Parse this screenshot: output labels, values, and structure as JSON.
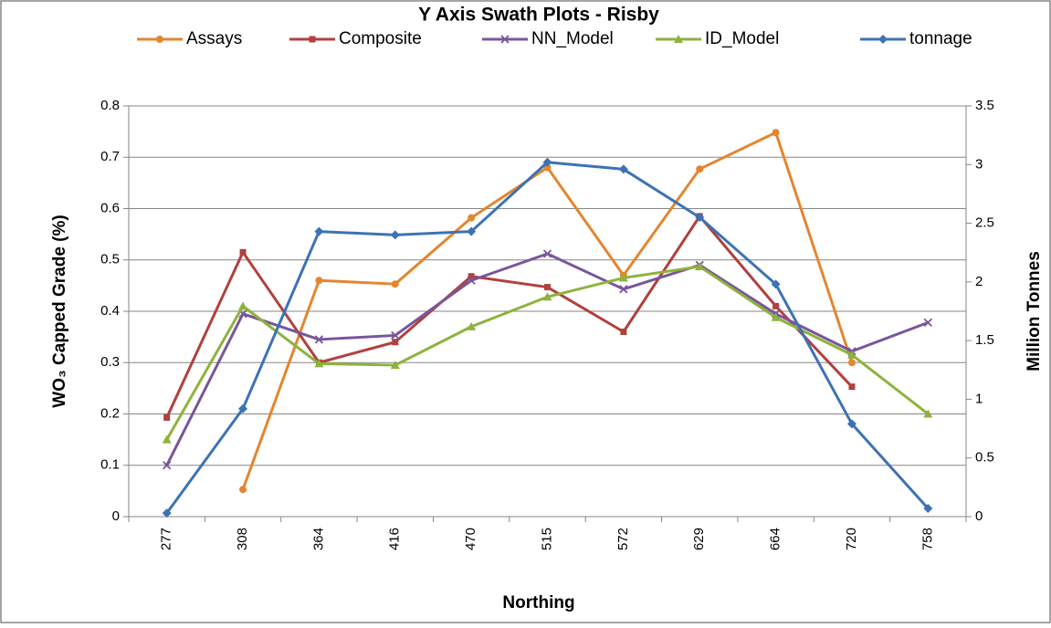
{
  "chart_data": {
    "type": "line",
    "title": "Y Axis Swath Plots - Risby",
    "x_label": "Northing",
    "y_label": "WO₃ Capped Grade  (%)",
    "y2_label": "Million Tonnes",
    "categories": [
      "277",
      "308",
      "364",
      "416",
      "470",
      "515",
      "572",
      "629",
      "664",
      "720",
      "758"
    ],
    "series": [
      {
        "name": "Assays",
        "color": "#e3862f",
        "marker": "circle",
        "values": [
          null,
          0.053,
          0.46,
          0.453,
          0.582,
          0.68,
          0.47,
          0.677,
          0.748,
          0.3,
          null
        ]
      },
      {
        "name": "Composite",
        "color": "#b0413e",
        "marker": "square",
        "values": [
          0.193,
          0.515,
          0.3,
          0.34,
          0.468,
          0.447,
          0.36,
          0.585,
          0.41,
          0.253,
          null
        ]
      },
      {
        "name": "NN_Model",
        "color": "#7a559b",
        "marker": "x",
        "values": [
          0.1,
          0.395,
          0.345,
          0.353,
          0.46,
          0.512,
          0.443,
          0.49,
          0.395,
          0.322,
          0.378
        ]
      },
      {
        "name": "ID_Model",
        "color": "#8db33c",
        "marker": "triangle",
        "values": [
          0.15,
          0.41,
          0.298,
          0.295,
          0.37,
          0.428,
          0.465,
          0.487,
          0.388,
          0.315,
          0.2
        ]
      },
      {
        "name": "tonnage",
        "color": "#3d72b4",
        "marker": "diamond",
        "axis": "y2",
        "values": [
          0.03,
          0.92,
          2.43,
          2.4,
          2.43,
          3.02,
          2.96,
          2.55,
          1.98,
          0.79,
          0.07
        ]
      }
    ],
    "ylim": [
      0,
      0.8
    ],
    "yticks": [
      0,
      0.1,
      0.2,
      0.3,
      0.4,
      0.5,
      0.6,
      0.7,
      0.8
    ],
    "y2lim": [
      0,
      3.5
    ],
    "y2ticks": [
      0,
      0.5,
      1,
      1.5,
      2,
      2.5,
      3,
      3.5
    ],
    "grid": true,
    "legend": "top"
  }
}
